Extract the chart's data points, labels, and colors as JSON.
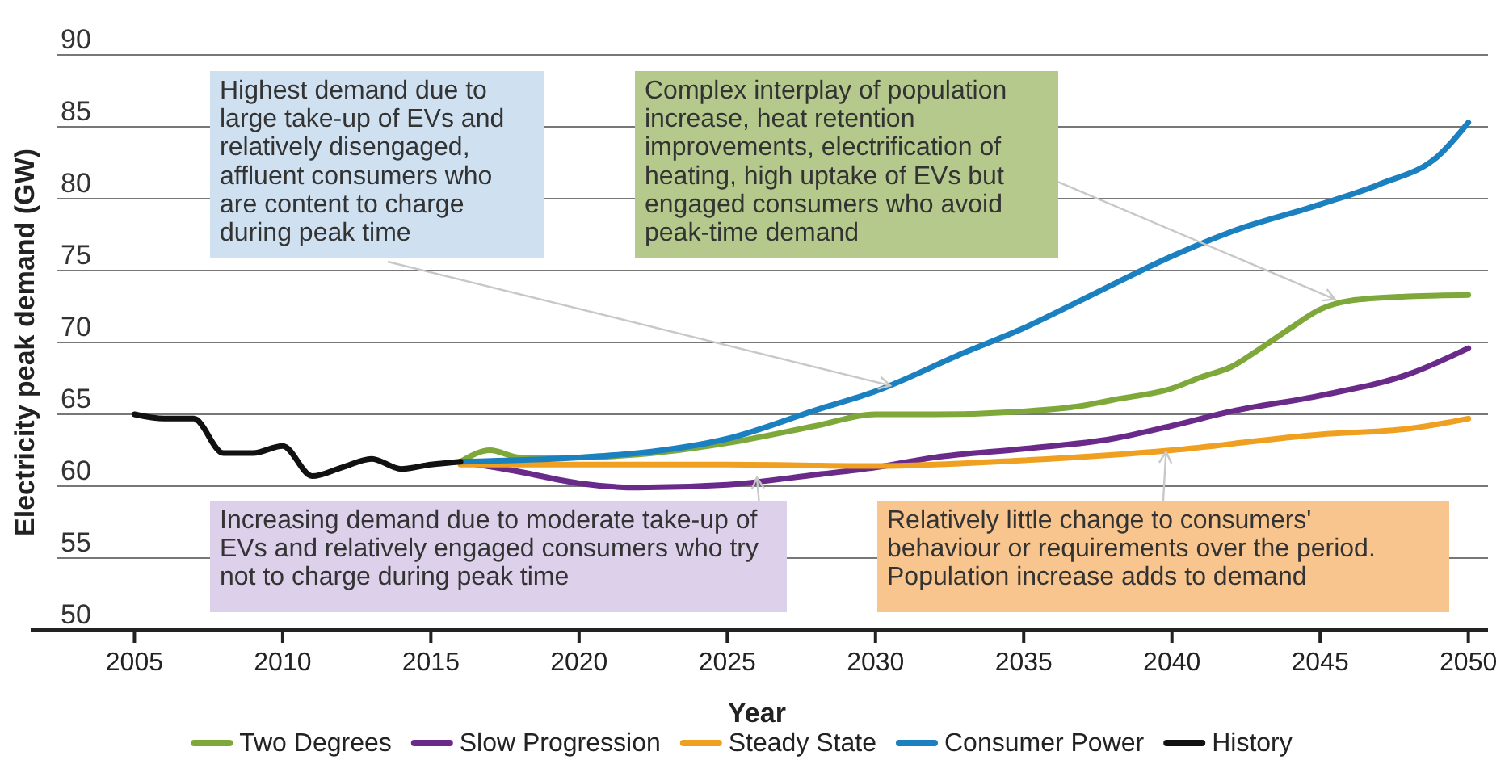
{
  "chart_data": {
    "type": "line",
    "xlabel": "Year",
    "ylabel": "Electricity peak demand (GW)",
    "xlim": [
      2001.5,
      2050.5
    ],
    "xticks": [
      2005,
      2010,
      2015,
      2020,
      2025,
      2030,
      2035,
      2040,
      2045,
      2050
    ],
    "ylim": [
      50,
      90
    ],
    "yticks": [
      50,
      55,
      60,
      65,
      70,
      75,
      80,
      85,
      90
    ],
    "grid": "y",
    "legend": "bottom",
    "line_style": "solid",
    "series": [
      {
        "name": "Two Degrees",
        "color": "#7fa83a",
        "x": [
          2016,
          2017,
          2018,
          2020,
          2022,
          2025,
          2028,
          2030,
          2032,
          2035,
          2037,
          2038,
          2040,
          2041,
          2042,
          2043,
          2044,
          2045,
          2046,
          2048,
          2050
        ],
        "values": [
          61.7,
          62.5,
          62,
          62,
          62.2,
          63,
          64.2,
          65,
          65,
          65.2,
          65.6,
          66,
          66.8,
          67.6,
          68.3,
          69.6,
          71,
          72.3,
          72.9,
          73.2,
          73.3
        ]
      },
      {
        "name": "Slow Progression",
        "color": "#6a2a8a",
        "x": [
          2016,
          2018,
          2020,
          2022,
          2025,
          2028,
          2030,
          2032,
          2035,
          2038,
          2040,
          2042,
          2045,
          2048,
          2050
        ],
        "values": [
          61.7,
          61,
          60.2,
          59.9,
          60.1,
          60.8,
          61.3,
          62,
          62.6,
          63.3,
          64.2,
          65.2,
          66.3,
          67.8,
          69.6
        ]
      },
      {
        "name": "Steady State",
        "color": "#f0a020",
        "x": [
          2016,
          2020,
          2025,
          2030,
          2035,
          2040,
          2045,
          2048,
          2050
        ],
        "values": [
          61.5,
          61.5,
          61.5,
          61.4,
          61.8,
          62.5,
          63.6,
          64,
          64.7
        ]
      },
      {
        "name": "Consumer Power",
        "color": "#1a80c0",
        "x": [
          2016,
          2020,
          2022,
          2025,
          2028,
          2030,
          2033,
          2035,
          2037,
          2040,
          2042,
          2045,
          2047,
          2049,
          2050
        ],
        "values": [
          61.7,
          62,
          62.3,
          63.3,
          65.3,
          66.6,
          69.3,
          71,
          73,
          76,
          77.7,
          79.6,
          81,
          83,
          85.3
        ]
      },
      {
        "name": "History",
        "color": "#111111",
        "x": [
          2005,
          2006,
          2007,
          2008,
          2009,
          2010,
          2011,
          2012,
          2013,
          2014,
          2015,
          2016
        ],
        "values": [
          65,
          64.7,
          64.7,
          62.3,
          62.3,
          62.8,
          60.7,
          61.3,
          61.9,
          61.2,
          61.5,
          61.7
        ]
      }
    ],
    "annotations": [
      {
        "text": "Highest demand due to large take-up of EVs and relatively disengaged, affluent consumers who are content to charge during peak time",
        "x": 2030.5,
        "y": 67
      },
      {
        "text": "Complex interplay of population increase, heat retention improvements, electrification of heating, high uptake of EVs but engaged consumers who avoid peak-time demand",
        "x": 2045.5,
        "y": 73
      },
      {
        "text": "Increasing demand due to moderate take-up of EVs and relatively engaged consumers who try not to charge during peak time",
        "x": 2026,
        "y": 60.6
      },
      {
        "text": "Relatively little change to consumers' behaviour or requirements over the period. Population increase adds to demand",
        "x": 2039.8,
        "y": 62.4
      }
    ]
  }
}
